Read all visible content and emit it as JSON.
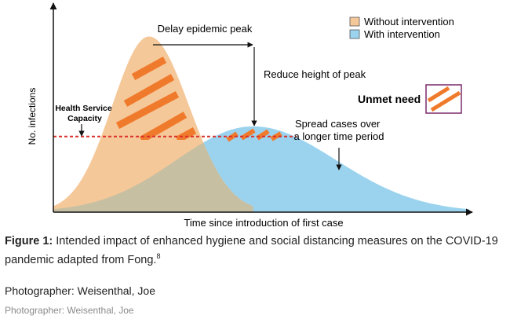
{
  "chart_data": {
    "type": "area",
    "x_axis_label": "Time since introduction of first case",
    "y_axis_label": "No. infections",
    "x_range": [
      0,
      100
    ],
    "y_range": [
      0,
      100
    ],
    "capacity_level": 37,
    "series": [
      {
        "name": "Without intervention",
        "color": "#f5c899",
        "peak_x": 23,
        "peak_height": 86,
        "start_x": 0,
        "end_x": 48
      },
      {
        "name": "With intervention",
        "color": "#9bd3ef",
        "peak_x": 48,
        "peak_height": 42,
        "start_x": 0,
        "end_x": 100
      }
    ],
    "legend": [
      "Without intervention",
      "With intervention"
    ],
    "annotations": {
      "health_capacity": "Health Service\nCapacity",
      "delay_peak": "Delay epidemic peak",
      "reduce_height": "Reduce height of peak",
      "spread_cases": "Spread cases over\na longer time period",
      "unmet_need": "Unmet need"
    }
  },
  "caption": {
    "label": "Figure 1:",
    "text": " Intended impact of enhanced hygiene and social distancing measures on the COVID-19 pandemic adapted from Fong.",
    "superscript": "8"
  },
  "credit_primary": "Photographer: Weisenthal, Joe",
  "credit_secondary": "Photographer: Weisenthal, Joe",
  "colors": {
    "without_fill": "#f5c899",
    "with_fill": "#9bd3ef",
    "overlap_fill": "#c7bfa2",
    "hatch": "#f07a2c",
    "capacity_line": "#d9302c"
  }
}
